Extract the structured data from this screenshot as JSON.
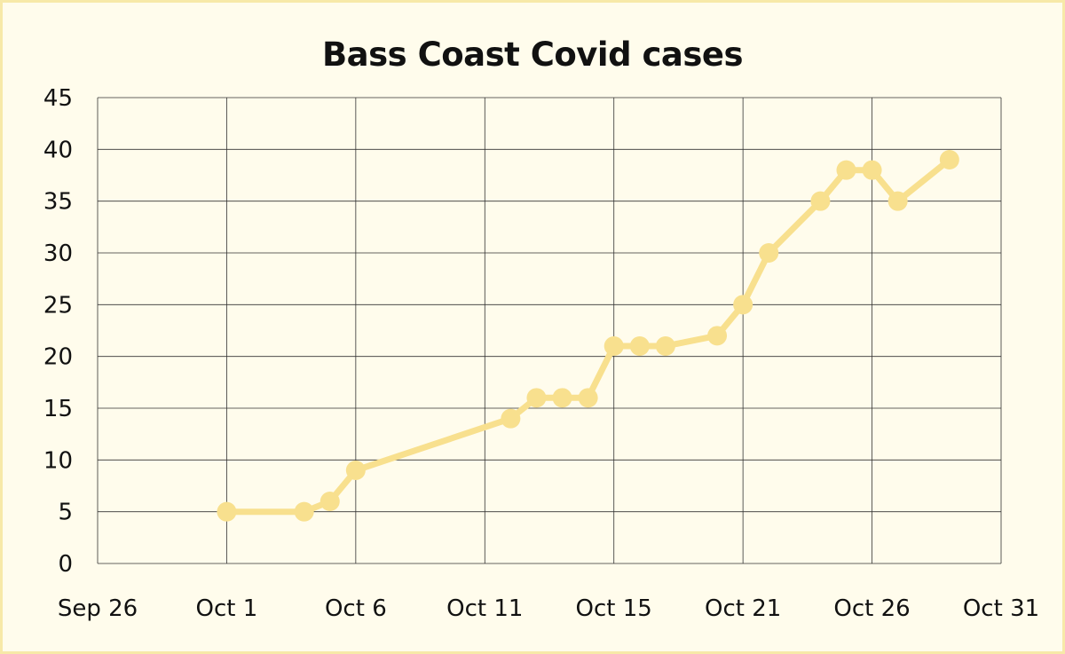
{
  "chart_data": {
    "type": "line",
    "title": "Bass Coast Covid cases",
    "xlabel": "",
    "ylabel": "",
    "x_ticks": [
      "Sep 26",
      "Oct 1",
      "Oct 6",
      "Oct 11",
      "Oct 15",
      "Oct 21",
      "Oct 26",
      "Oct 31"
    ],
    "y_ticks": [
      "0",
      "5",
      "10",
      "15",
      "20",
      "25",
      "30",
      "35",
      "40",
      "45"
    ],
    "xlim": [
      "2021-09-26",
      "2021-10-31"
    ],
    "ylim": [
      0,
      45
    ],
    "grid": true,
    "legend": "none",
    "series": [
      {
        "color": "#f8e08e",
        "points": [
          {
            "x": "2021-10-01",
            "y": 5
          },
          {
            "x": "2021-10-04",
            "y": 5
          },
          {
            "x": "2021-10-05",
            "y": 6
          },
          {
            "x": "2021-10-06",
            "y": 9
          },
          {
            "x": "2021-10-12",
            "y": 14
          },
          {
            "x": "2021-10-13",
            "y": 16
          },
          {
            "x": "2021-10-14",
            "y": 16
          },
          {
            "x": "2021-10-15",
            "y": 16
          },
          {
            "x": "2021-10-16",
            "y": 21
          },
          {
            "x": "2021-10-17",
            "y": 21
          },
          {
            "x": "2021-10-18",
            "y": 21
          },
          {
            "x": "2021-10-20",
            "y": 22
          },
          {
            "x": "2021-10-21",
            "y": 25
          },
          {
            "x": "2021-10-22",
            "y": 30
          },
          {
            "x": "2021-10-24",
            "y": 35
          },
          {
            "x": "2021-10-25",
            "y": 38
          },
          {
            "x": "2021-10-26",
            "y": 38
          },
          {
            "x": "2021-10-27",
            "y": 35
          },
          {
            "x": "2021-10-29",
            "y": 39
          }
        ]
      }
    ]
  }
}
